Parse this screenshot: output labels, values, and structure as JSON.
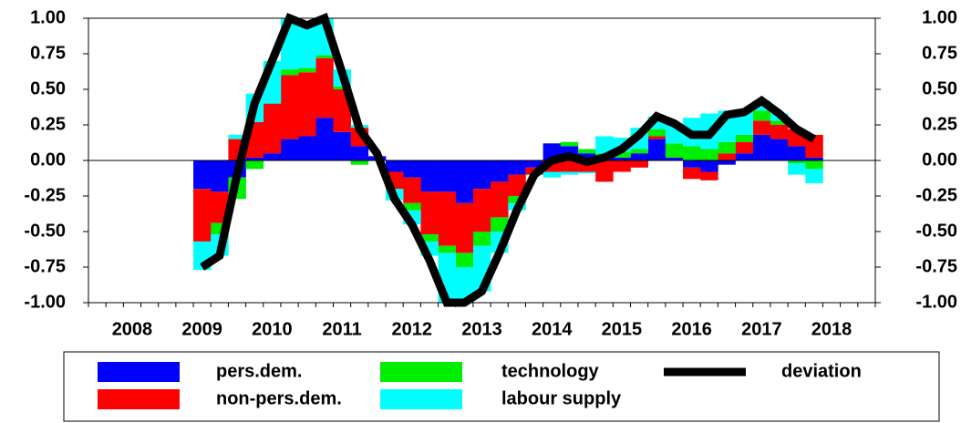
{
  "chart_data": {
    "type": "bar",
    "stacked": true,
    "categories": [
      null,
      null,
      "2008",
      null,
      null,
      null,
      "2009",
      null,
      null,
      null,
      "2010",
      null,
      null,
      null,
      "2011",
      null,
      null,
      null,
      "2012",
      null,
      null,
      null,
      "2013",
      null,
      null,
      null,
      "2014",
      null,
      null,
      null,
      "2015",
      null,
      null,
      null,
      "2016",
      null,
      null,
      null,
      "2017",
      null,
      null,
      null,
      "2018",
      null,
      null
    ],
    "series": [
      {
        "name": "pers.dem.",
        "type": "bar",
        "color": "#0000ff",
        "values": [
          null,
          null,
          null,
          null,
          null,
          null,
          -0.2,
          -0.22,
          -0.12,
          0.02,
          0.05,
          0.15,
          0.17,
          0.3,
          0.2,
          0.1,
          0.03,
          -0.08,
          -0.12,
          -0.22,
          -0.22,
          -0.3,
          -0.2,
          -0.15,
          -0.1,
          -0.05,
          0.12,
          0.1,
          0.05,
          0.02,
          0.02,
          0.05,
          0.15,
          0.02,
          -0.05,
          -0.08,
          -0.03,
          0.05,
          0.18,
          0.15,
          0.1,
          0.02,
          null,
          null,
          null
        ]
      },
      {
        "name": "non-pers.dem.",
        "type": "bar",
        "color": "#ff0000",
        "values": [
          null,
          null,
          null,
          null,
          null,
          null,
          -0.37,
          -0.22,
          0.15,
          0.25,
          0.35,
          0.45,
          0.45,
          0.42,
          0.3,
          0.13,
          0,
          -0.12,
          -0.18,
          -0.3,
          -0.38,
          -0.35,
          -0.3,
          -0.25,
          -0.15,
          -0.05,
          -0.08,
          -0.08,
          -0.08,
          -0.15,
          -0.08,
          -0.05,
          0.02,
          0,
          -0.08,
          -0.06,
          0.05,
          0.08,
          0.1,
          0.1,
          0.12,
          0.16,
          null,
          null,
          null
        ]
      },
      {
        "name": "technology",
        "type": "bar",
        "color": "#00ee00",
        "values": [
          null,
          null,
          null,
          null,
          null,
          null,
          0,
          -0.08,
          -0.15,
          -0.06,
          0,
          0.04,
          0.03,
          0.02,
          0.02,
          -0.03,
          0,
          0,
          -0.05,
          -0.05,
          -0.05,
          -0.1,
          -0.1,
          -0.1,
          -0.05,
          0,
          0,
          0.03,
          0.03,
          0.03,
          0.04,
          0.03,
          0.05,
          0.1,
          0.1,
          0.08,
          0.08,
          0.05,
          0.07,
          0.03,
          -0.02,
          -0.06,
          null,
          null,
          null
        ]
      },
      {
        "name": "labour supply",
        "type": "bar",
        "color": "#00ffff",
        "values": [
          null,
          null,
          null,
          null,
          null,
          null,
          -0.2,
          -0.15,
          0.03,
          0.2,
          0.3,
          0.36,
          0.3,
          0.26,
          0.12,
          0.02,
          0,
          -0.08,
          -0.1,
          -0.1,
          -0.35,
          -0.25,
          -0.32,
          -0.15,
          -0.05,
          0,
          -0.04,
          -0.02,
          -0.01,
          0.12,
          0.1,
          0.15,
          0.09,
          0.14,
          0.2,
          0.25,
          0.22,
          0.16,
          0.07,
          0.05,
          -0.08,
          -0.1,
          null,
          null,
          null
        ]
      },
      {
        "name": "deviation",
        "type": "line",
        "color": "#000000",
        "values": [
          null,
          null,
          null,
          null,
          null,
          null,
          -0.75,
          -0.67,
          -0.1,
          0.4,
          0.7,
          1.0,
          0.95,
          1.0,
          0.62,
          0.22,
          0.05,
          -0.27,
          -0.45,
          -0.7,
          -1.0,
          -1.0,
          -0.92,
          -0.65,
          -0.35,
          -0.1,
          0,
          0.03,
          -0.01,
          0.02,
          0.08,
          0.18,
          0.31,
          0.26,
          0.18,
          0.18,
          0.32,
          0.34,
          0.42,
          0.33,
          0.22,
          0.15,
          null,
          null,
          null
        ]
      }
    ],
    "ylim": [
      -1,
      1
    ],
    "yticks": [
      {
        "value": -1,
        "label": "-1.00"
      },
      {
        "value": -0.75,
        "label": "-0.75"
      },
      {
        "value": -0.5,
        "label": "-0.50"
      },
      {
        "value": -0.25,
        "label": "-0.25"
      },
      {
        "value": 0,
        "label": "0.00"
      },
      {
        "value": 0.25,
        "label": "0.25"
      },
      {
        "value": 0.5,
        "label": "0.50"
      },
      {
        "value": 0.75,
        "label": "0.75"
      },
      {
        "value": 1,
        "label": "1.00"
      }
    ],
    "y2lim": [
      -1,
      1
    ],
    "y2ticks": [
      {
        "value": -1,
        "label": "-1.00"
      },
      {
        "value": -0.75,
        "label": "-0.75"
      },
      {
        "value": -0.5,
        "label": "-0.50"
      },
      {
        "value": -0.25,
        "label": "-0.25"
      },
      {
        "value": 0,
        "label": "0.00"
      },
      {
        "value": 0.25,
        "label": "0.25"
      },
      {
        "value": 0.5,
        "label": "0.50"
      },
      {
        "value": 0.75,
        "label": "0.75"
      },
      {
        "value": 1,
        "label": "1.00"
      }
    ],
    "zero_line": true,
    "legend": "bottom"
  }
}
